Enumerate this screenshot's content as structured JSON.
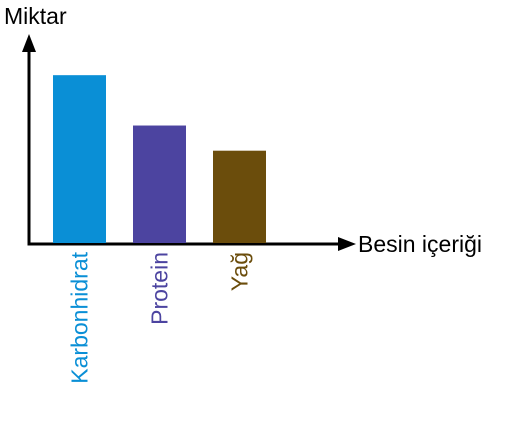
{
  "chart_data": {
    "type": "bar",
    "ylabel": "Miktar",
    "xlabel": "Besin içeriği",
    "categories": [
      "Karbonhidrat",
      "Protein",
      "Yağ"
    ],
    "values": [
      100,
      70,
      55
    ],
    "ylim": [
      0,
      115
    ],
    "colors": [
      "#0a8fd6",
      "#4c44a0",
      "#6b4d0c"
    ],
    "axis_color": "#000000",
    "grid": false
  }
}
